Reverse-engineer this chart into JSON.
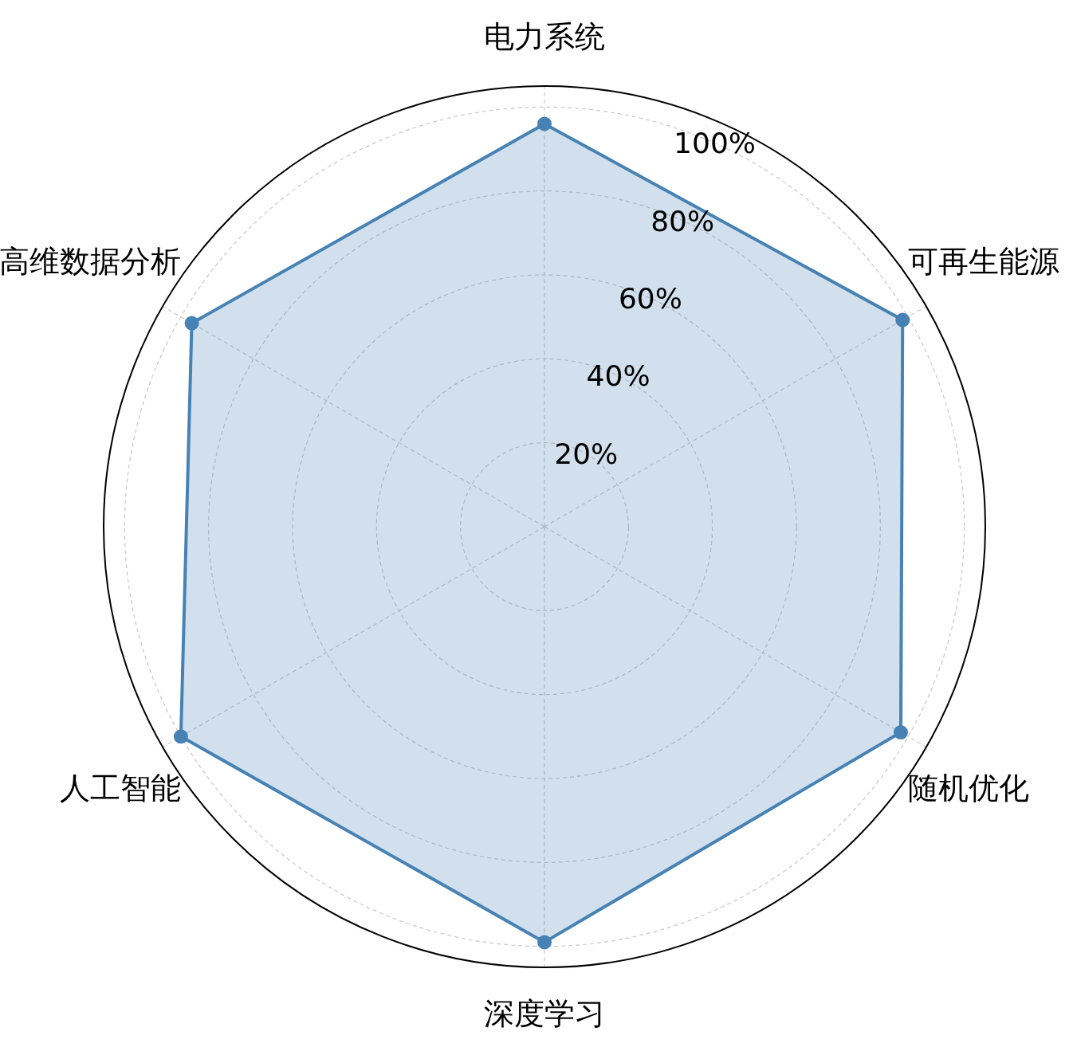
{
  "chart_data": {
    "type": "radar",
    "categories": [
      "电力系统",
      "可再生能源",
      "随机优化",
      "深度学习",
      "人工智能",
      "高维数据分析"
    ],
    "series": [
      {
        "color": "#4682b4",
        "values": [
          96,
          98.5,
          98,
          99,
          100,
          97
        ]
      }
    ],
    "ylim": [
      0,
      105
    ],
    "yticks": [
      {
        "value": 20,
        "label": "20%"
      },
      {
        "value": 40,
        "label": "40%"
      },
      {
        "value": 60,
        "label": "60%"
      },
      {
        "value": 80,
        "label": "80%"
      },
      {
        "value": 100,
        "label": "100%"
      }
    ],
    "grid": true,
    "marker": "circle",
    "line_style": "solid"
  }
}
